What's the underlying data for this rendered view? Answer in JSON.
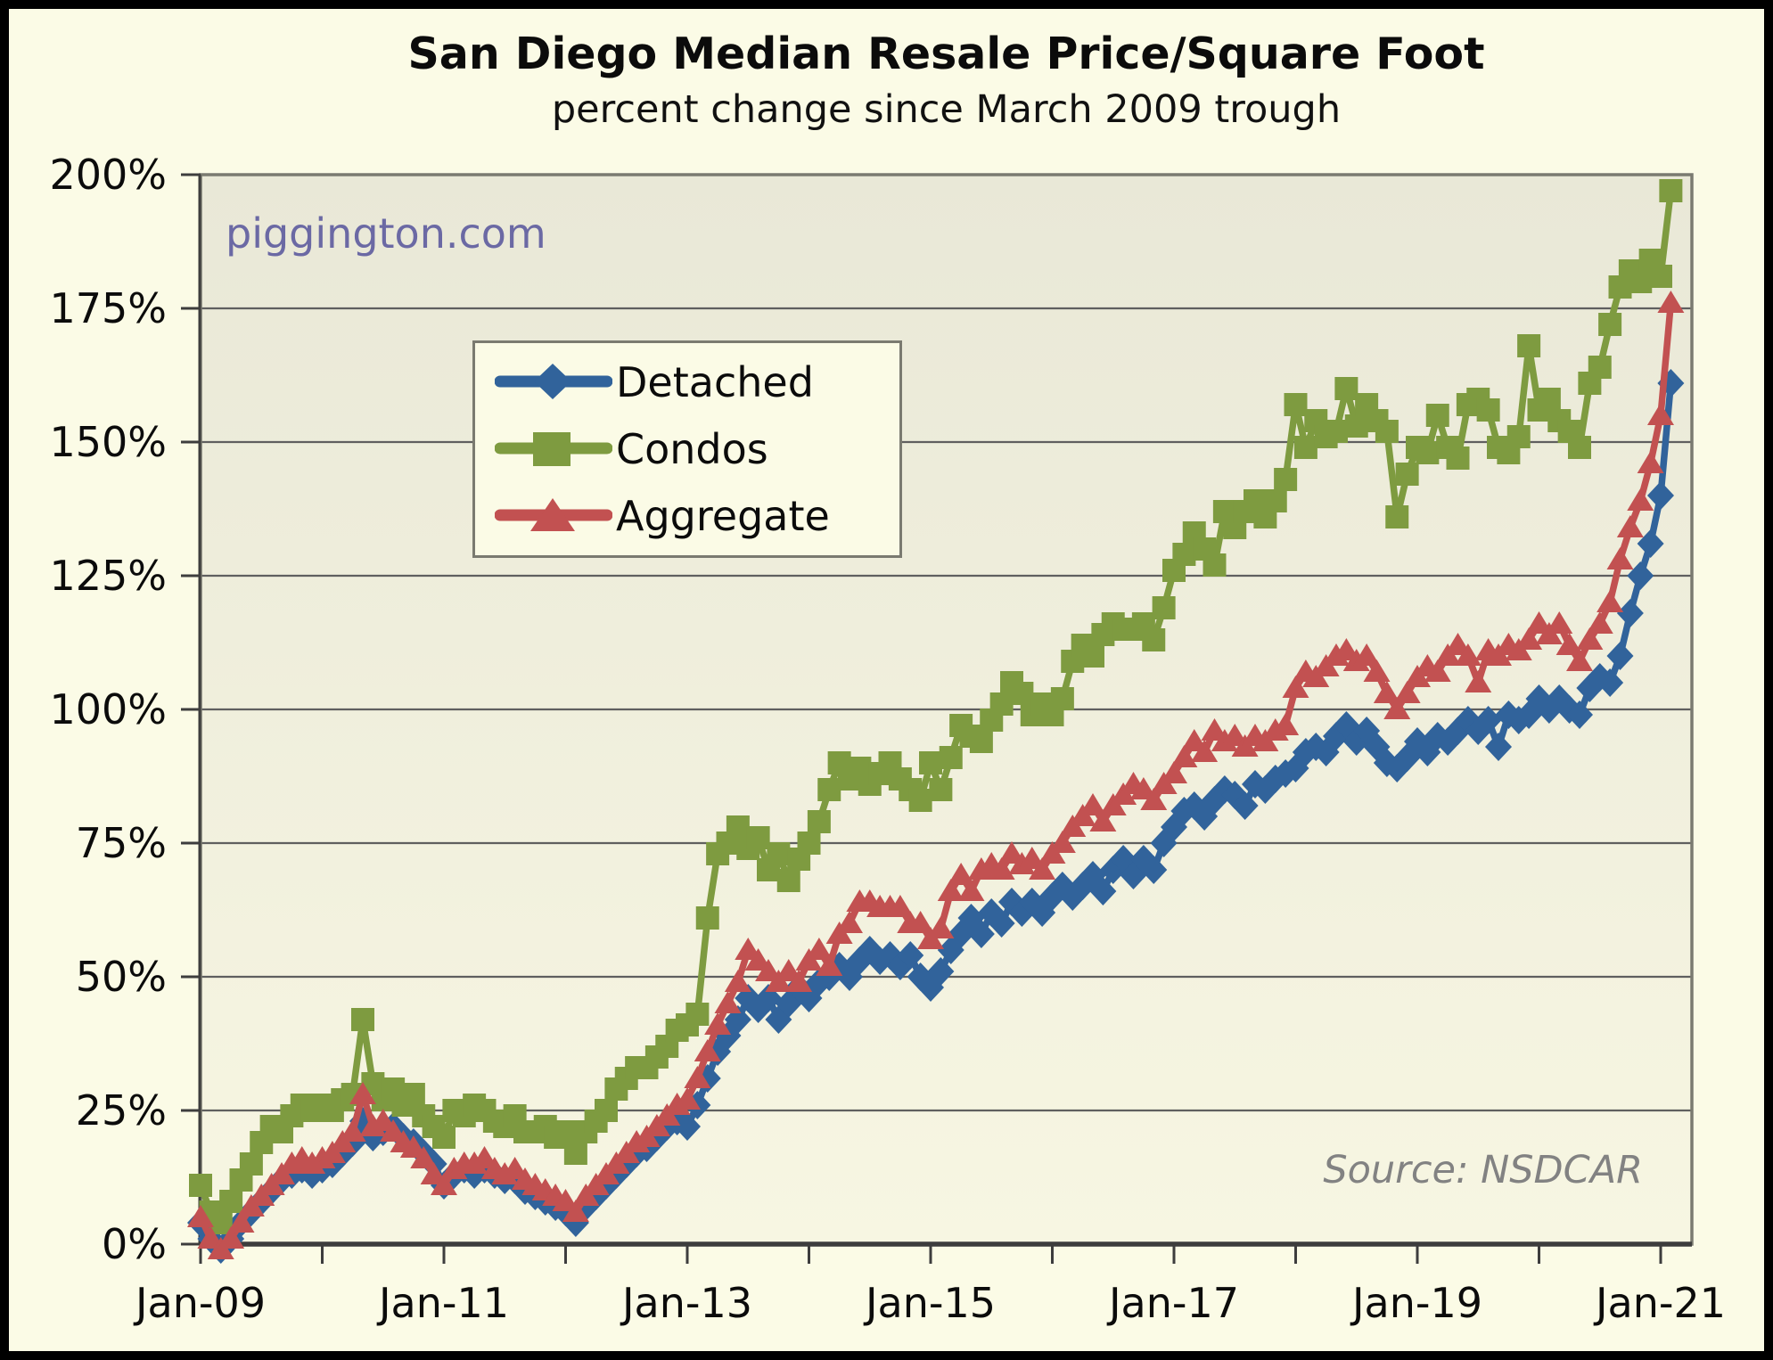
{
  "header": {
    "title": "San Diego Median Resale Price/Square Foot",
    "subtitle": "percent change since March 2009 trough"
  },
  "watermark": "piggington.com",
  "source_note": "Source: NSDCAR",
  "colors": {
    "background": "#fbfbe6",
    "frame_border": "#000000",
    "plot_fill_top": "#e9e8d7",
    "plot_fill_bottom": "#f7f6e2",
    "gridline": "#5f5f5f",
    "plot_border": "#7a7a70",
    "axis": "#3d3d3d",
    "watermark": "#6b69a4",
    "source": "#828282",
    "detached": "#31639b",
    "condos": "#7e9b40",
    "aggregate": "#c25151"
  },
  "chart_data": {
    "type": "line",
    "title": "San Diego Median Resale Price/Square Foot",
    "subtitle": "percent change since March 2009 trough",
    "x_start": "2009-01",
    "x_end": "2021-02",
    "x_step": "month",
    "x_tick_labels": [
      "Jan-09",
      "Jan-11",
      "Jan-13",
      "Jan-15",
      "Jan-17",
      "Jan-19",
      "Jan-21"
    ],
    "x_tick_years": 13,
    "y_tick_labels": [
      "0%",
      "25%",
      "50%",
      "75%",
      "100%",
      "125%",
      "150%",
      "175%",
      "200%"
    ],
    "ylim": [
      0,
      200
    ],
    "y_gridline_step": 25,
    "grid": true,
    "legend_position": "upper-left-inside",
    "series": [
      {
        "name": "Detached",
        "color": "#31639b",
        "marker": "diamond",
        "values": [
          4,
          1,
          -1,
          1,
          4,
          6,
          8,
          10,
          12,
          13,
          14,
          13,
          14,
          15,
          17,
          19,
          23,
          20,
          21,
          22,
          20,
          19,
          17,
          15,
          11,
          13,
          14,
          13,
          14,
          13,
          12,
          12,
          10,
          9,
          8,
          7,
          6,
          4,
          7,
          9,
          11,
          13,
          15,
          17,
          18,
          20,
          22,
          23,
          22,
          26,
          31,
          36,
          39,
          42,
          46,
          44,
          46,
          42,
          45,
          48,
          46,
          49,
          50,
          52,
          50,
          53,
          55,
          53,
          54,
          52,
          54,
          50,
          48,
          51,
          55,
          58,
          61,
          58,
          62,
          60,
          64,
          62,
          64,
          62,
          65,
          67,
          65,
          67,
          69,
          66,
          70,
          72,
          69,
          72,
          70,
          75,
          78,
          81,
          82,
          80,
          83,
          85,
          84,
          82,
          86,
          85,
          87,
          88,
          89,
          92,
          93,
          92,
          95,
          97,
          94,
          96,
          93,
          90,
          89,
          91,
          94,
          92,
          95,
          94,
          96,
          98,
          96,
          98,
          93,
          99,
          98,
          99,
          102,
          100,
          102,
          100,
          99,
          104,
          106,
          105,
          110,
          118,
          125,
          131,
          140,
          161
        ]
      },
      {
        "name": "Condos",
        "color": "#7e9b40",
        "marker": "square",
        "values": [
          11,
          6,
          4,
          8,
          12,
          15,
          19,
          22,
          21,
          24,
          26,
          25,
          26,
          25,
          27,
          28,
          42,
          30,
          27,
          29,
          26,
          28,
          24,
          22,
          20,
          25,
          24,
          26,
          25,
          23,
          22,
          24,
          21,
          21,
          22,
          20,
          21,
          17,
          21,
          23,
          25,
          29,
          31,
          33,
          33,
          35,
          37,
          40,
          41,
          43,
          61,
          73,
          75,
          78,
          74,
          76,
          70,
          73,
          68,
          72,
          75,
          79,
          85,
          90,
          87,
          89,
          86,
          88,
          90,
          87,
          85,
          83,
          90,
          85,
          91,
          97,
          95,
          94,
          98,
          101,
          105,
          103,
          99,
          101,
          99,
          102,
          109,
          112,
          110,
          114,
          116,
          115,
          115,
          116,
          113,
          119,
          126,
          129,
          133,
          130,
          127,
          137,
          134,
          137,
          139,
          136,
          139,
          143,
          157,
          149,
          154,
          151,
          152,
          160,
          153,
          157,
          154,
          152,
          136,
          144,
          149,
          148,
          155,
          149,
          147,
          157,
          158,
          156,
          149,
          148,
          151,
          168,
          156,
          158,
          154,
          152,
          149,
          161,
          164,
          172,
          179,
          182,
          180,
          184,
          181,
          197
        ]
      },
      {
        "name": "Aggregate",
        "color": "#c25151",
        "marker": "triangle",
        "values": [
          5,
          1,
          -1,
          1,
          4,
          7,
          9,
          11,
          13,
          15,
          16,
          15,
          16,
          17,
          19,
          21,
          28,
          22,
          23,
          21,
          19,
          18,
          16,
          13,
          11,
          14,
          15,
          15,
          16,
          14,
          13,
          14,
          12,
          11,
          10,
          9,
          8,
          6,
          9,
          11,
          13,
          15,
          17,
          19,
          20,
          22,
          24,
          26,
          27,
          31,
          36,
          41,
          45,
          49,
          55,
          53,
          51,
          49,
          51,
          49,
          53,
          55,
          52,
          58,
          60,
          64,
          64,
          63,
          63,
          63,
          60,
          60,
          57,
          59,
          66,
          69,
          66,
          70,
          71,
          70,
          73,
          71,
          72,
          70,
          73,
          75,
          78,
          80,
          82,
          79,
          82,
          84,
          86,
          85,
          83,
          86,
          88,
          91,
          94,
          92,
          96,
          94,
          95,
          93,
          95,
          94,
          96,
          97,
          104,
          107,
          106,
          108,
          110,
          111,
          109,
          110,
          107,
          103,
          100,
          103,
          106,
          108,
          107,
          110,
          112,
          110,
          105,
          111,
          110,
          112,
          111,
          113,
          116,
          114,
          116,
          112,
          109,
          113,
          116,
          120,
          128,
          134,
          139,
          146,
          155,
          176
        ]
      }
    ]
  }
}
